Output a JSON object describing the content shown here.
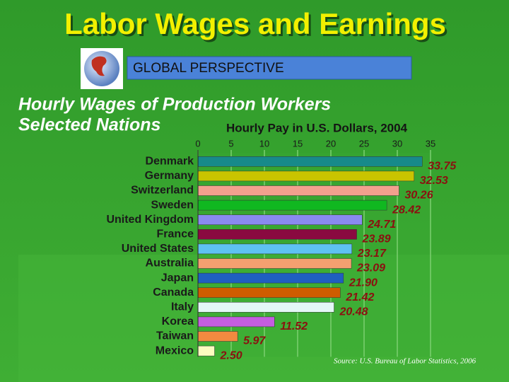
{
  "header": {
    "title": "Labor Wages and Earnings",
    "badge": "GLOBAL PERSPECTIVE"
  },
  "chart_data": {
    "type": "hbar",
    "title": "Hourly Wages of Production Workers",
    "subtitle": "Selected Nations",
    "x_label": "Hourly Pay in U.S. Dollars, 2004",
    "source": "Source: U.S. Bureau of Labor Statistics, 2006",
    "categories": [
      "Denmark",
      "Germany",
      "Switzerland",
      "Sweden",
      "United Kingdom",
      "France",
      "United States",
      "Australia",
      "Japan",
      "Canada",
      "Italy",
      "Korea",
      "Taiwan",
      "Mexico"
    ],
    "values": [
      33.75,
      32.53,
      30.26,
      28.42,
      24.71,
      23.89,
      23.17,
      23.09,
      21.9,
      21.42,
      20.48,
      11.52,
      5.97,
      2.5
    ],
    "value_labels": [
      "33.75",
      "32.53",
      "30.26",
      "28.42",
      "24.71",
      "23.89",
      "23.17",
      "23.09",
      "21.90",
      "21.42",
      "20.48",
      "11.52",
      "5.97",
      "2.50"
    ],
    "colors": [
      "#178a8a",
      "#c9c400",
      "#f3a08e",
      "#10b820",
      "#8a8af0",
      "#8a0a40",
      "#5ec2f2",
      "#f4a070",
      "#1f5fc0",
      "#cf5c00",
      "#e4f8f6",
      "#c45ee0",
      "#f28a40",
      "#fcfcc0"
    ],
    "xlim": [
      0,
      35
    ],
    "xticks": [
      0,
      5,
      10,
      15,
      20,
      25,
      30,
      35
    ],
    "grid": true
  }
}
